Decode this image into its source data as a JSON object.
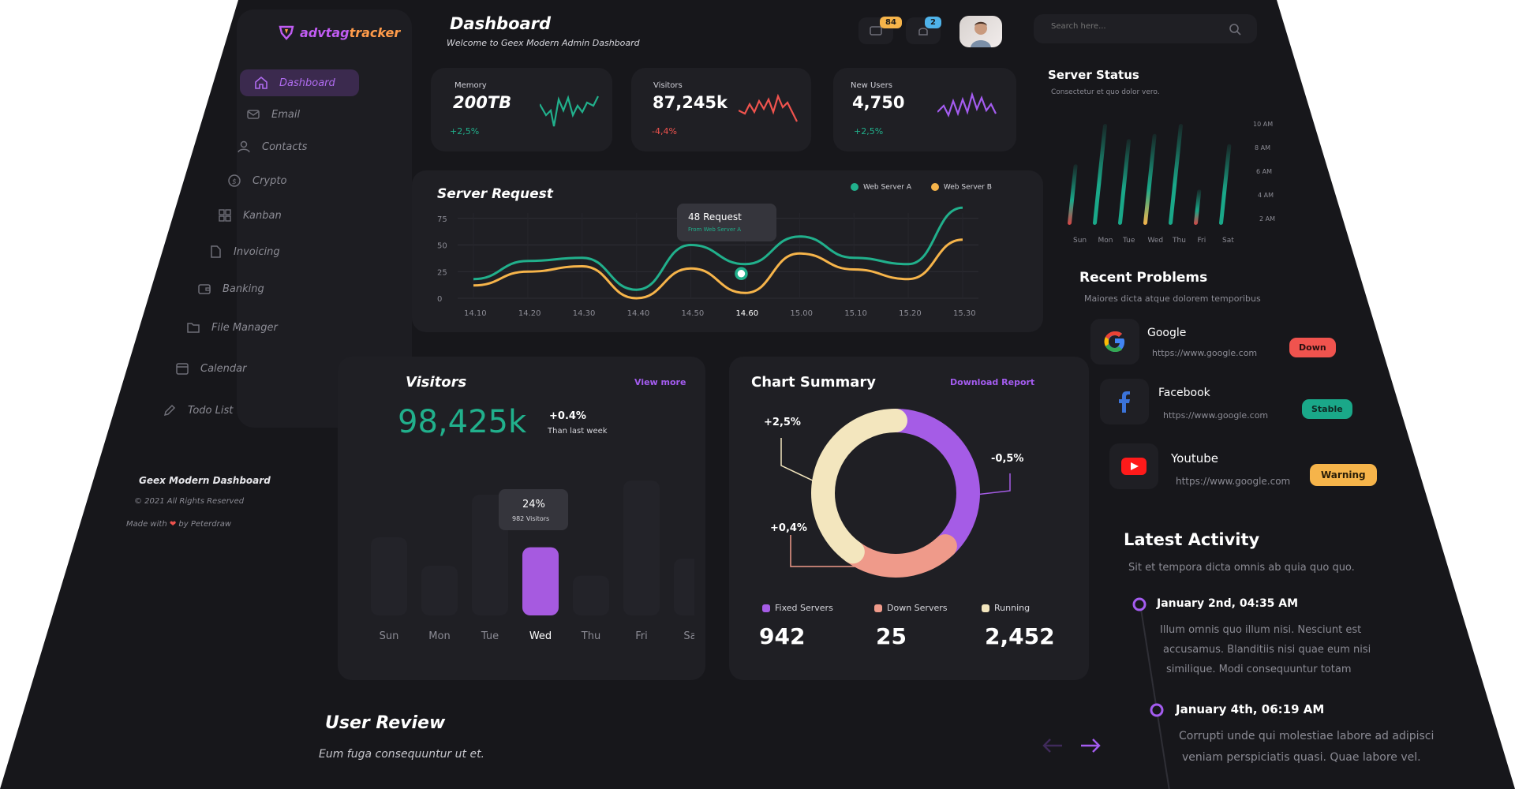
{
  "app": {
    "logo_text_a": "advtag",
    "logo_text_b": "tracker"
  },
  "header": {
    "title": "Dashboard",
    "subtitle": "Welcome to Geex Modern Admin Dashboard",
    "messages_badge": "84",
    "notifications_badge": "2"
  },
  "search": {
    "placeholder": "Search here..."
  },
  "sidebar": {
    "items": [
      {
        "label": "Dashboard",
        "icon": "home-icon"
      },
      {
        "label": "Email",
        "icon": "mail-icon"
      },
      {
        "label": "Contacts",
        "icon": "user-icon"
      },
      {
        "label": "Crypto",
        "icon": "coin-icon"
      },
      {
        "label": "Kanban",
        "icon": "grid-icon"
      },
      {
        "label": "Invoicing",
        "icon": "document-icon"
      },
      {
        "label": "Banking",
        "icon": "wallet-icon"
      },
      {
        "label": "File Manager",
        "icon": "folder-icon"
      },
      {
        "label": "Calendar",
        "icon": "calendar-icon"
      },
      {
        "label": "Todo List",
        "icon": "pencil-icon"
      }
    ],
    "footer": {
      "title": "Geex Modern Dashboard",
      "copyright": "© 2021 All Rights Reserved",
      "made_with_a": "Made with",
      "made_with_b": "by Peterdraw"
    }
  },
  "stats": [
    {
      "title": "Memory",
      "value": "200TB",
      "change": "+2,5%",
      "color": "#21b08c"
    },
    {
      "title": "Visitors",
      "value": "87,245k",
      "change": "-4,4%",
      "color": "#f0534e"
    },
    {
      "title": "New Users",
      "value": "4,750",
      "change": "+2,5%",
      "color": "#a45cf0"
    }
  ],
  "server_request": {
    "title": "Server Request",
    "legend": [
      {
        "name": "Web Server A",
        "color": "#21b08c"
      },
      {
        "name": "Web Server B",
        "color": "#f6b44a"
      }
    ],
    "tooltip": {
      "title": "48 Request",
      "sub": "From Web Server A"
    },
    "chart_data": {
      "type": "line",
      "x": [
        "14.10",
        "14.20",
        "14.30",
        "14.40",
        "14.50",
        "14.60",
        "15.00",
        "15.10",
        "15.20",
        "15.30"
      ],
      "yticks": [
        "0",
        "25",
        "50",
        "75"
      ],
      "ylim": [
        0,
        80
      ],
      "series": [
        {
          "name": "Web Server A",
          "values": [
            18,
            35,
            38,
            8,
            50,
            32,
            58,
            38,
            32,
            85
          ]
        },
        {
          "name": "Web Server B",
          "values": [
            12,
            25,
            30,
            0,
            28,
            5,
            42,
            27,
            18,
            55
          ]
        }
      ]
    }
  },
  "visitors": {
    "title": "Visitors",
    "view_more": "View more",
    "total": "98,425k",
    "change": "+0.4%",
    "change_sub": "Than last week",
    "tooltip": {
      "title": "24%",
      "sub": "982 Visitors"
    },
    "chart_data": {
      "type": "bar",
      "categories": [
        "Sun",
        "Mon",
        "Tue",
        "Wed",
        "Thu",
        "Fri",
        "Sat"
      ],
      "values": [
        55,
        35,
        85,
        48,
        28,
        95,
        40
      ],
      "highlight": "Wed"
    }
  },
  "chart_summary": {
    "title": "Chart Summary",
    "download": "Download Report",
    "callouts": [
      "+2,5%",
      "-0,5%",
      "+0,4%"
    ],
    "chart_data": {
      "type": "pie",
      "labels": [
        "Fixed Servers",
        "Down Servers",
        "Running"
      ],
      "values": [
        942,
        25,
        2452
      ],
      "colors": [
        "#a55ce6",
        "#ef9a8a",
        "#f3e6be"
      ],
      "arc_share": [
        0.38,
        0.22,
        0.4
      ]
    },
    "totals": [
      {
        "label": "Fixed Servers",
        "value": "942",
        "color": "#a55ce6"
      },
      {
        "label": "Down Servers",
        "value": "25",
        "color": "#ef9a8a"
      },
      {
        "label": "Running",
        "value": "2,452",
        "color": "#f3e6be"
      }
    ]
  },
  "user_review": {
    "title": "User Review",
    "subtitle": "Eum fuga consequuntur ut et."
  },
  "server_status": {
    "title": "Server Status",
    "subtitle": "Consectetur et quo dolor vero.",
    "chart_data": {
      "type": "bar",
      "categories": [
        "Sun",
        "Mon",
        "Tue",
        "Wed",
        "Thu",
        "Fri",
        "Sat"
      ],
      "yticks": [
        "10 AM",
        "8 AM",
        "6 AM",
        "4 AM",
        "2 AM"
      ],
      "values": [
        60,
        100,
        85,
        90,
        100,
        35,
        80
      ]
    }
  },
  "recent_problems": {
    "title": "Recent Problems",
    "subtitle": "Maiores dicta atque dolorem temporibus",
    "items": [
      {
        "name": "Google",
        "url": "https://www.google.com",
        "status": "Down",
        "status_color": "#f0534e",
        "icon": "google-icon"
      },
      {
        "name": "Facebook",
        "url": "https://www.google.com",
        "status": "Stable",
        "status_color": "#1aa889",
        "icon": "facebook-icon"
      },
      {
        "name": "Youtube",
        "url": "https://www.google.com",
        "status": "Warning",
        "status_color": "#f6b44a",
        "icon": "youtube-icon"
      }
    ]
  },
  "latest_activity": {
    "title": "Latest Activity",
    "subtitle": "Sit et tempora dicta omnis ab quia quo quo.",
    "items": [
      {
        "date": "January 2nd, 04:35 AM",
        "l1": "Illum omnis quo illum nisi. Nesciunt est",
        "l2": "accusamus. Blanditiis nisi quae eum nisi",
        "l3": "similique. Modi consequuntur totam"
      },
      {
        "date": "January 4th, 06:19 AM",
        "l1": "Corrupti unde qui molestiae labore ad adipisci",
        "l2": "veniam perspiciatis quasi. Quae labore vel."
      }
    ]
  }
}
